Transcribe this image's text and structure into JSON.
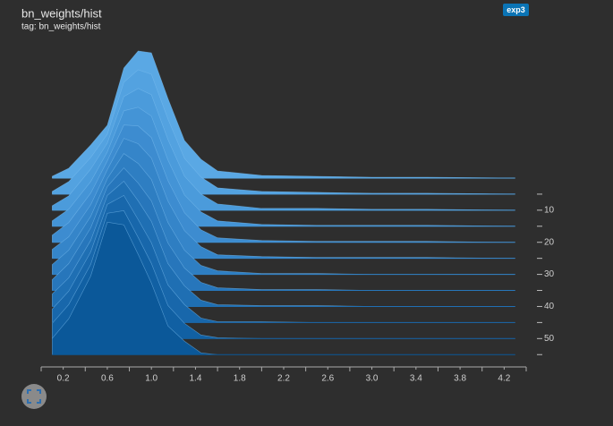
{
  "chart_data": {
    "type": "offset-histogram",
    "title": "bn_weights/hist",
    "subtitle": "tag: bn_weights/hist",
    "badge": "exp3",
    "x": [
      0.1,
      0.25,
      0.45,
      0.6,
      0.75,
      0.88,
      1.0,
      1.15,
      1.3,
      1.45,
      1.6,
      2.0,
      2.5,
      3.0,
      3.5,
      4.0,
      4.3
    ],
    "xlim": [
      0,
      4.4
    ],
    "xticks": [
      0.2,
      0.6,
      {
        "value": 1,
        "label": "1.0"
      },
      1.4,
      1.8,
      2.2,
      2.6,
      {
        "value": 3,
        "label": "3.0"
      },
      3.4,
      3.8,
      4.2
    ],
    "xminorticks": [
      0,
      0.4,
      0.8,
      1.2,
      1.6,
      2.0,
      2.4,
      2.8,
      3.2,
      3.6,
      4.0,
      4.4
    ],
    "steplim": [
      0,
      58
    ],
    "step_ticks": [
      10,
      20,
      30,
      40,
      50
    ],
    "step_minor_ticks": [
      5,
      15,
      25,
      35,
      45,
      55
    ],
    "ylim": [
      0,
      150
    ],
    "series": [
      {
        "step": 0,
        "color": "#5aa8e4",
        "values": [
          2,
          11,
          37,
          59,
          123,
          142,
          140,
          89,
          42,
          21,
          8,
          3,
          2,
          1,
          1,
          0.5,
          0
        ]
      },
      {
        "step": 5,
        "color": "#53a2e0",
        "values": [
          3,
          14,
          41,
          67,
          125,
          139,
          134,
          84,
          40,
          19,
          7,
          3,
          2,
          1,
          1,
          0.5,
          0
        ]
      },
      {
        "step": 10,
        "color": "#4b9bdb",
        "values": [
          5,
          16,
          46,
          75,
          127,
          136,
          129,
          79,
          38,
          18,
          7,
          2,
          2,
          1,
          1,
          0.4,
          0
        ]
      },
      {
        "step": 15,
        "color": "#4494d6",
        "values": [
          6,
          19,
          50,
          83,
          129,
          133,
          123,
          74,
          35,
          16,
          6,
          2,
          1,
          1,
          1,
          0.4,
          0
        ]
      },
      {
        "step": 20,
        "color": "#3d8cd0",
        "values": [
          8,
          22,
          55,
          91,
          131,
          130,
          117,
          69,
          33,
          14,
          5,
          2,
          1,
          1,
          1,
          0.3,
          0
        ]
      },
      {
        "step": 25,
        "color": "#3585c9",
        "values": [
          10,
          24,
          60,
          99,
          134,
          128,
          112,
          64,
          31,
          13,
          4,
          2,
          1,
          1,
          1,
          0.3,
          0
        ]
      },
      {
        "step": 30,
        "color": "#2e7ec2",
        "values": [
          11,
          27,
          65,
          107,
          135,
          124,
          106,
          58,
          27,
          10,
          4,
          1,
          1,
          0,
          0,
          0.2,
          0
        ]
      },
      {
        "step": 35,
        "color": "#2776bb",
        "values": [
          12,
          30,
          70,
          116,
          137,
          120,
          100,
          53,
          25,
          9,
          3,
          1,
          1,
          0,
          0,
          0.2,
          0
        ]
      },
      {
        "step": 40,
        "color": "#1f6fb3",
        "values": [
          14,
          32,
          74,
          124,
          140,
          118,
          95,
          48,
          23,
          7,
          2,
          1,
          1,
          0,
          0,
          0.1,
          0
        ]
      },
      {
        "step": 45,
        "color": "#1867ab",
        "values": [
          15,
          35,
          79,
          132,
          142,
          115,
          89,
          42,
          20,
          5,
          1,
          1,
          0,
          0,
          0,
          0.1,
          0
        ]
      },
      {
        "step": 50,
        "color": "#1160a3",
        "values": [
          17,
          38,
          83,
          140,
          143,
          113,
          84,
          37,
          17,
          4,
          1,
          0,
          0,
          0,
          0,
          0,
          0
        ]
      },
      {
        "step": 55,
        "color": "#0b5899",
        "values": [
          18,
          40,
          88,
          148,
          145,
          112,
          80,
          32,
          15,
          2,
          0,
          0,
          0,
          0,
          0,
          0,
          0
        ]
      }
    ]
  }
}
